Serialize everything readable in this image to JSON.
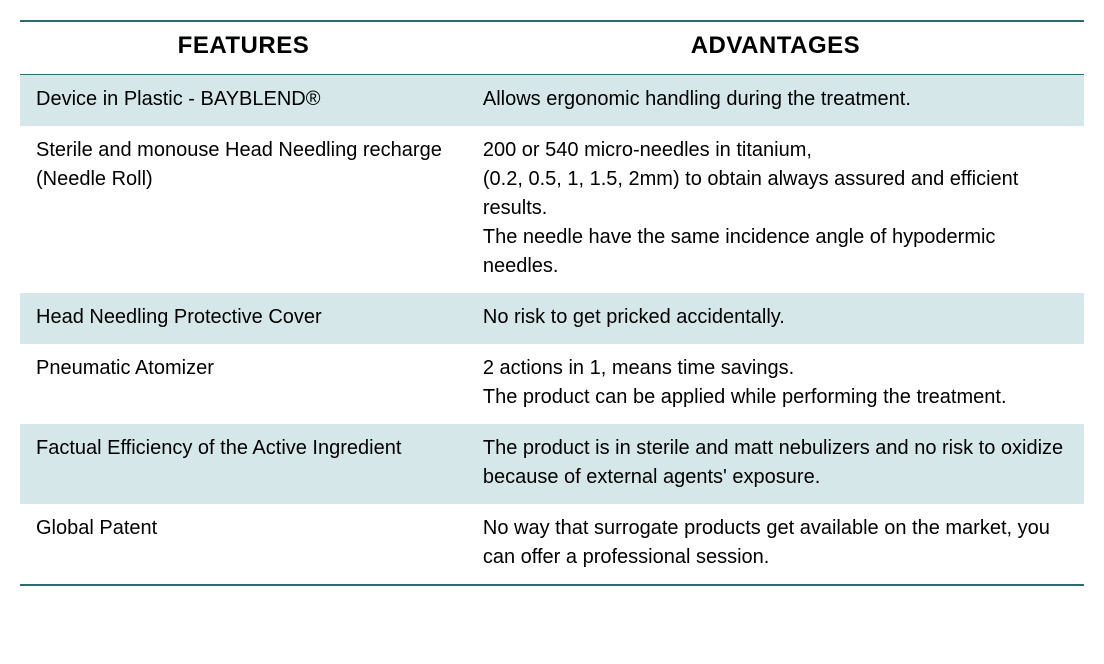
{
  "table": {
    "border_color": "#2f6b77",
    "stripe_colors": [
      "#d6e7ea",
      "#ffffff"
    ],
    "header_bg": "#ffffff",
    "text_color": "#000000",
    "header_fontsize": 24,
    "body_fontsize": 20,
    "columns": [
      "FEATURES",
      "ADVANTAGES"
    ],
    "rows": [
      {
        "feature": "Device in Plastic  - BAYBLEND®",
        "advantage": "Allows ergonomic handling during the treatment."
      },
      {
        "feature": "Sterile and monouse Head Needling recharge (Needle Roll)",
        "advantage": "200 or 540 micro-needles in titanium,\n (0.2, 0.5, 1, 1.5, 2mm) to obtain always assured and efficient results.\nThe needle have the same incidence angle of hypodermic needles."
      },
      {
        "feature": "Head Needling Protective Cover",
        "advantage": "No risk to get pricked accidentally."
      },
      {
        "feature": "Pneumatic Atomizer",
        "advantage": "2 actions in 1, means time savings.\nThe product can be applied while performing the treatment."
      },
      {
        "feature": "Factual Efficiency of the Active Ingredient",
        "advantage": "The product is in sterile and matt nebulizers and no risk to oxidize because of external agents' exposure."
      },
      {
        "feature": "Global Patent",
        "advantage": "No way that surrogate products get available on the market, you can offer a professional session."
      }
    ]
  }
}
